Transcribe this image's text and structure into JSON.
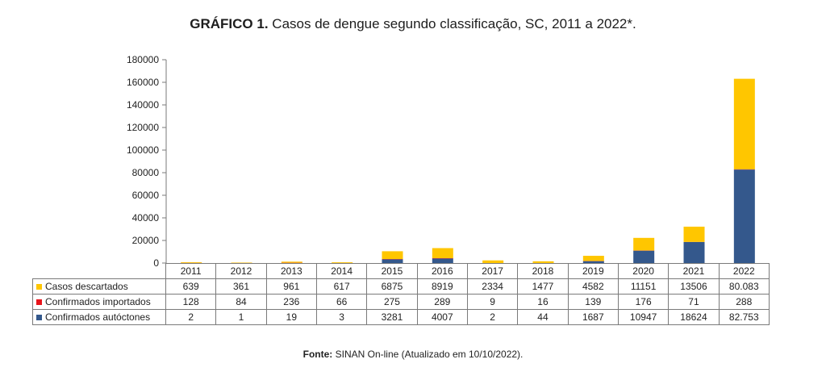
{
  "title": {
    "prefix": "GRÁFICO 1.",
    "text": " Casos de dengue segundo classificação, SC, 2011 a 2022*."
  },
  "source": {
    "prefix": "Fonte:",
    "text": " SINAN On-line (Atualizado em 10/10/2022)."
  },
  "chart_data": {
    "type": "bar",
    "stacked": true,
    "title": "GRÁFICO 1. Casos de dengue segundo classificação, SC, 2011 a 2022*.",
    "categories": [
      "2011",
      "2012",
      "2013",
      "2014",
      "2015",
      "2016",
      "2017",
      "2018",
      "2019",
      "2020",
      "2021",
      "2022"
    ],
    "ylim": [
      0,
      180000
    ],
    "yticks": [
      "0",
      "20000",
      "40000",
      "60000",
      "80000",
      "100000",
      "120000",
      "140000",
      "160000",
      "180000"
    ],
    "ytick_values": [
      0,
      20000,
      40000,
      60000,
      80000,
      100000,
      120000,
      140000,
      160000,
      180000
    ],
    "legend": "data table rows",
    "series": [
      {
        "name": "Casos descartados",
        "color": "#FFC600",
        "values": [
          639,
          361,
          961,
          617,
          6875,
          8919,
          2334,
          1477,
          4582,
          11151,
          13506,
          80083
        ],
        "labels": [
          "639",
          "361",
          "961",
          "617",
          "6875",
          "8919",
          "2334",
          "1477",
          "4582",
          "11151",
          "13506",
          "80.083"
        ]
      },
      {
        "name": "Confirmados importados",
        "color": "#E8141B",
        "values": [
          128,
          84,
          236,
          66,
          275,
          289,
          9,
          16,
          139,
          176,
          71,
          288
        ],
        "labels": [
          "128",
          "84",
          "236",
          "66",
          "275",
          "289",
          "9",
          "16",
          "139",
          "176",
          "71",
          "288"
        ]
      },
      {
        "name": "Confirmados autóctones",
        "color": "#34588C",
        "values": [
          2,
          1,
          19,
          3,
          3281,
          4007,
          2,
          44,
          1687,
          10947,
          18624,
          82753
        ],
        "labels": [
          "2",
          "1",
          "19",
          "3",
          "3281",
          "4007",
          "2",
          "44",
          "1687",
          "10947",
          "18624",
          "82.753"
        ]
      }
    ]
  }
}
